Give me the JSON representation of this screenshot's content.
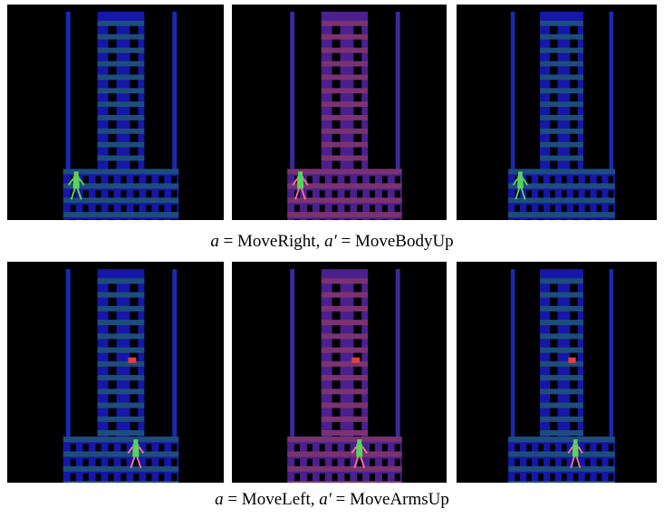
{
  "rows": [
    {
      "caption": {
        "a": "a",
        "action": "= MoveRight,",
        "a_prime": "a′",
        "alt_action": "= MoveBodyUp"
      }
    },
    {
      "caption": {
        "a": "a",
        "action": "= MoveLeft,",
        "a_prime": "a′",
        "alt_action": "= MoveArmsUp"
      }
    }
  ]
}
